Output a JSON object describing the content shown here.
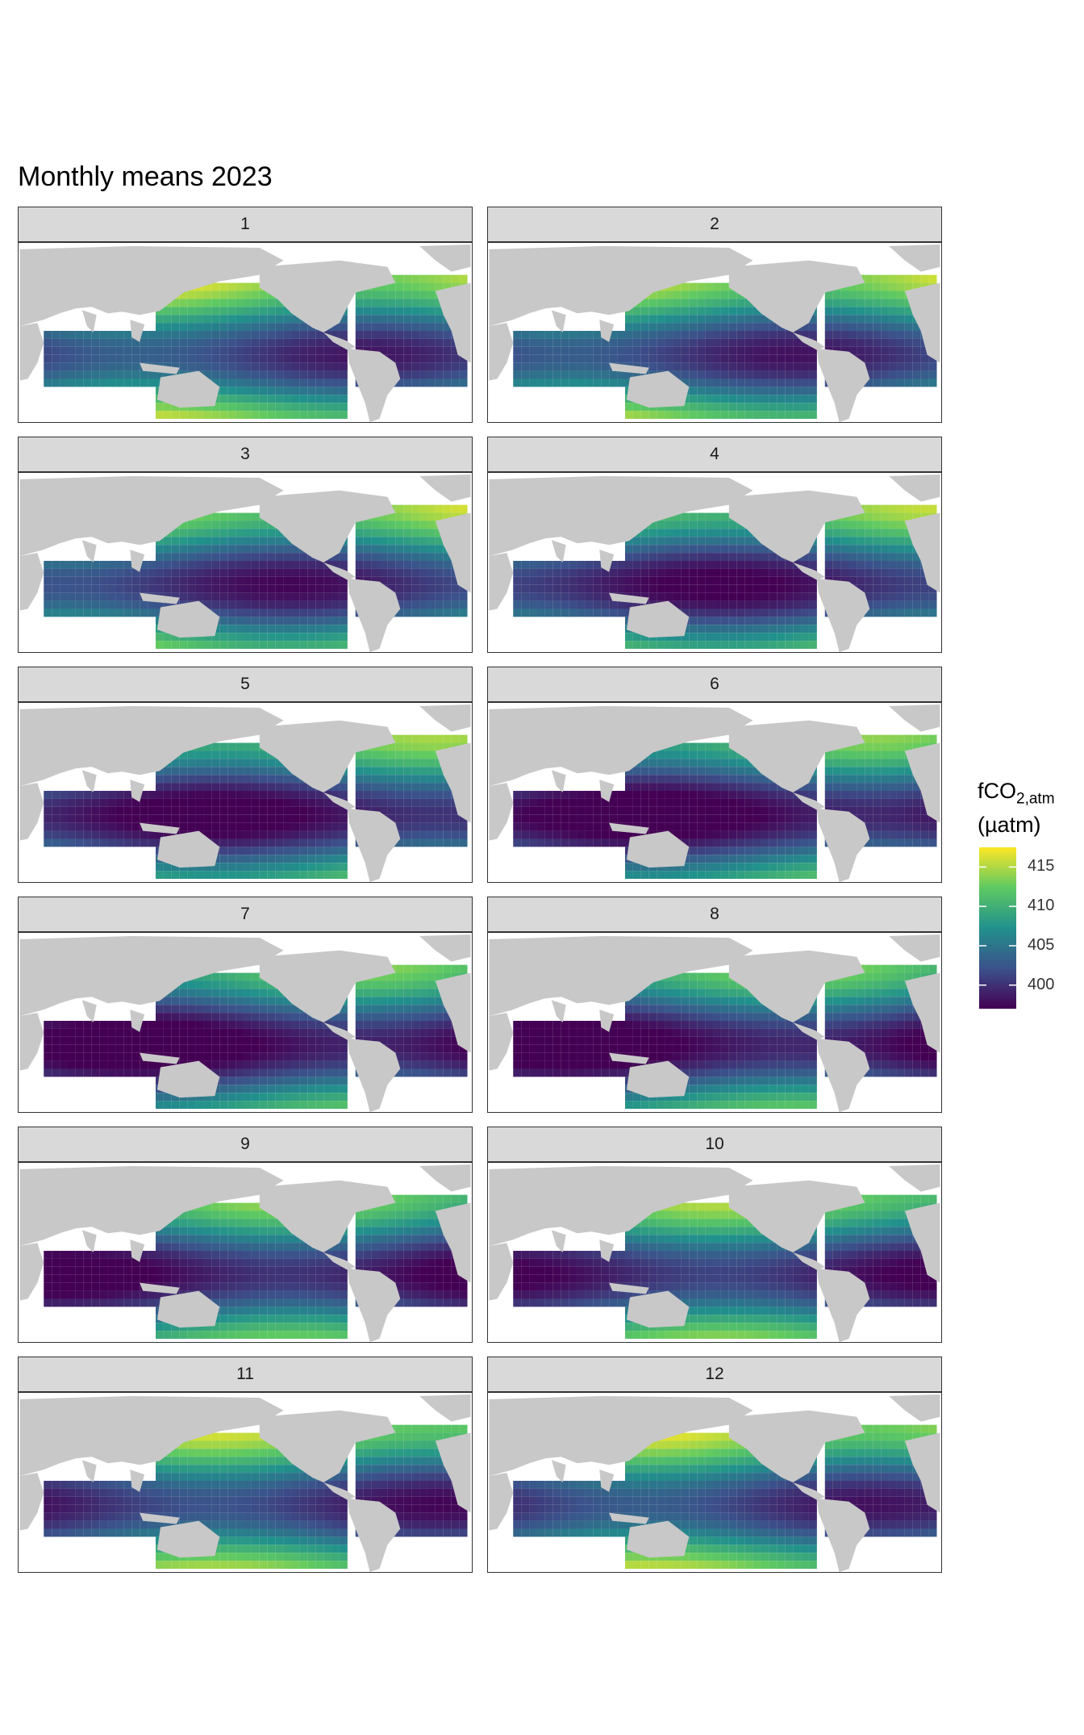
{
  "title": "Monthly means 2023",
  "panels": [
    {
      "label": "1"
    },
    {
      "label": "2"
    },
    {
      "label": "3"
    },
    {
      "label": "4"
    },
    {
      "label": "5"
    },
    {
      "label": "6"
    },
    {
      "label": "7"
    },
    {
      "label": "8"
    },
    {
      "label": "9"
    },
    {
      "label": "10"
    },
    {
      "label": "11"
    },
    {
      "label": "12"
    }
  ],
  "legend": {
    "title_main": "fCO",
    "title_sub": "2,atm",
    "title_unit": "(µatm)",
    "ticks": [
      "415",
      "410",
      "405",
      "400"
    ],
    "tick_values": [
      415,
      410,
      405,
      400
    ],
    "range": [
      397,
      417.5
    ],
    "palette": "viridis",
    "colors": [
      "#440154",
      "#3b528b",
      "#21918c",
      "#5ec962",
      "#fde725"
    ]
  },
  "colors": {
    "land": "#c8c8c8",
    "strip_background": "#d9d9d9",
    "border": "#333333"
  }
}
